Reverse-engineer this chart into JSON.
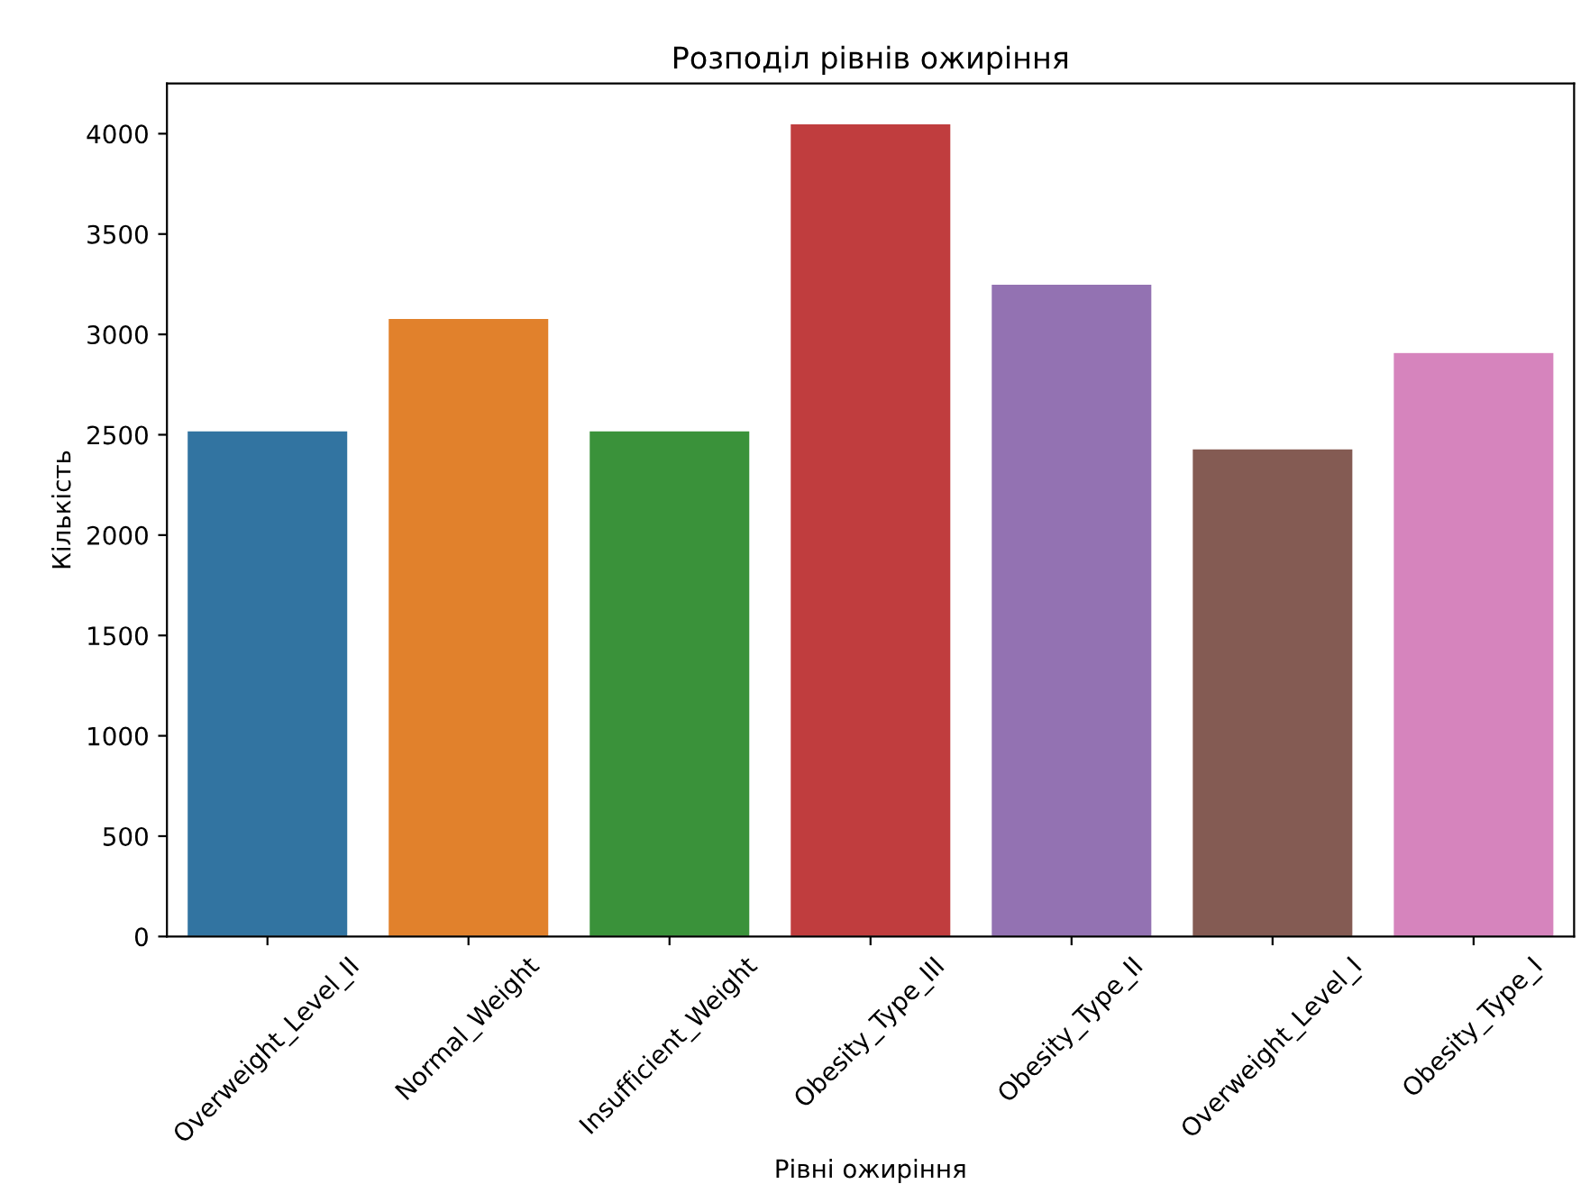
{
  "chart_data": {
    "type": "bar",
    "title": "Розподіл рівнів ожиріння",
    "xlabel": "Рівні ожиріння",
    "ylabel": "Кількість",
    "categories": [
      "Overweight_Level_II",
      "Normal_Weight",
      "Insufficient_Weight",
      "Obesity_Type_III",
      "Obesity_Type_II",
      "Overweight_Level_I",
      "Obesity_Type_I"
    ],
    "values": [
      2520,
      3080,
      2520,
      4050,
      3250,
      2430,
      2910
    ],
    "colors": [
      "#3274a1",
      "#e1812c",
      "#3a923a",
      "#c03d3e",
      "#9372b2",
      "#845b53",
      "#d684bd"
    ],
    "ylim": [
      0,
      4250
    ],
    "yticks": [
      0,
      500,
      1000,
      1500,
      2000,
      2500,
      3000,
      3500,
      4000
    ],
    "grid": false,
    "legend": false
  }
}
